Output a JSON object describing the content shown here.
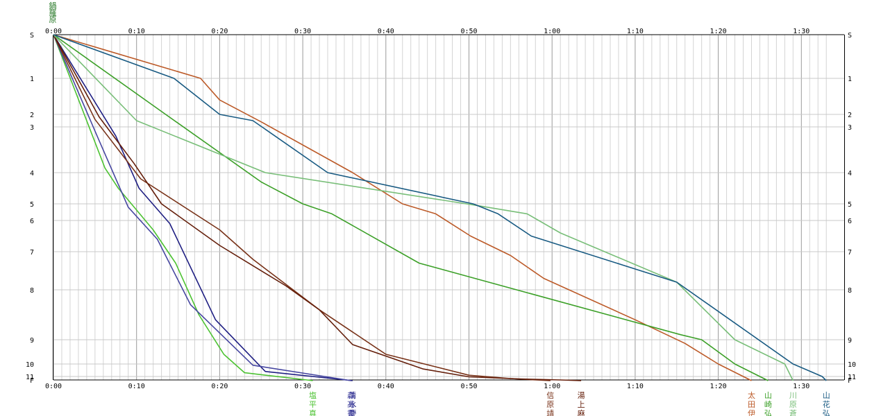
{
  "chart_data": {
    "type": "line",
    "xlim_minutes": [
      0,
      93
    ],
    "x_ticks": [
      {
        "t": 0,
        "label": "0:00"
      },
      {
        "t": 10,
        "label": "0:10"
      },
      {
        "t": 20,
        "label": "0:20"
      },
      {
        "t": 30,
        "label": "0:30"
      },
      {
        "t": 40,
        "label": "0:40"
      },
      {
        "t": 50,
        "label": "0:50"
      },
      {
        "t": 60,
        "label": "1:00"
      },
      {
        "t": 70,
        "label": "1:10"
      },
      {
        "t": 80,
        "label": "1:20"
      },
      {
        "t": 90,
        "label": "1:30"
      }
    ],
    "minor_grid_minutes": 1,
    "grid": true,
    "checkpoints": [
      "S",
      "1",
      "2",
      "3",
      "4",
      "5",
      "6",
      "7",
      "8",
      "9",
      "10",
      "11",
      "F"
    ],
    "checkpoint_order": [
      0,
      1,
      2,
      3,
      4,
      5,
      6,
      7,
      8,
      9,
      10,
      11,
      12
    ],
    "corner_label": "鍋羅原",
    "series": [
      {
        "name": "塩平真",
        "color": "#4cc232",
        "label_lines": [
          "塩",
          "平",
          "真"
        ],
        "x": [
          0,
          6.2,
          7.8,
          12,
          14.7,
          17.5,
          20.5,
          23,
          31.2
        ],
        "y": [
          0,
          3.9,
          4.5,
          6.3,
          7.3,
          8.5,
          9.6,
          10.7,
          12.2
        ]
      },
      {
        "name": "清水慶",
        "color": "#1e1e82",
        "label_lines": [
          "清",
          "水",
          "慶"
        ],
        "x": [
          0,
          7.5,
          10.3,
          14,
          19.5,
          25.5,
          36
        ],
        "y": [
          0,
          3.2,
          4.5,
          6.1,
          8.6,
          10.6,
          12.2
        ]
      },
      {
        "name": "森髙靈",
        "color": "#4646a0",
        "label_lines": [
          "森",
          "髙",
          "靈"
        ],
        "x": [
          0,
          5.5,
          9,
          12.5,
          16.5,
          24,
          35.8
        ],
        "y": [
          0,
          3.3,
          5.2,
          6.6,
          8.3,
          10.1,
          12.2
        ]
      },
      {
        "name": "信原靖",
        "color": "#783218",
        "label_lines": [
          "信",
          "原",
          "靖"
        ],
        "x": [
          0,
          5,
          10.5,
          20,
          24,
          32,
          40,
          50,
          55,
          59.8
        ],
        "y": [
          0,
          2.4,
          4.2,
          6.3,
          7.2,
          8.4,
          9.6,
          10.9,
          11.6,
          12.2
        ]
      },
      {
        "name": "湯上麻",
        "color": "#641e0a",
        "label_lines": [
          "湯",
          "上",
          "麻"
        ],
        "x": [
          0,
          5.5,
          9.7,
          13,
          20,
          28,
          32,
          36,
          44.5,
          50,
          56,
          61,
          63.5
        ],
        "y": [
          0,
          2.2,
          3.8,
          5.0,
          6.8,
          7.9,
          8.4,
          9.2,
          10.4,
          11.1,
          11.7,
          12.0,
          12.2
        ]
      },
      {
        "name": "太田伊",
        "color": "#bc5a28",
        "label_lines": [
          "太",
          "田",
          "伊"
        ],
        "x": [
          0,
          17.7,
          20,
          25,
          36,
          42,
          46,
          50.2,
          55,
          59,
          70,
          76,
          80,
          84
        ],
        "y": [
          0,
          1.0,
          1.6,
          2.6,
          4.0,
          5.0,
          5.6,
          6.5,
          7.1,
          7.7,
          8.6,
          9.15,
          10.0,
          12.2
        ]
      },
      {
        "name": "山崎弘",
        "color": "#3ca028",
        "label_lines": [
          "山",
          "崎",
          "弘"
        ],
        "x": [
          0,
          13.5,
          25,
          30,
          33.5,
          44,
          75.5,
          78,
          82,
          86
        ],
        "y": [
          0,
          2.0,
          4.3,
          5.0,
          5.6,
          7.3,
          8.9,
          9.0,
          10.0,
          12.2
        ]
      },
      {
        "name": "川原蒼",
        "color": "#78be78",
        "label_lines": [
          "川",
          "原",
          "蒼"
        ],
        "x": [
          0,
          10,
          25.5,
          51,
          57,
          61,
          75,
          82,
          88,
          89
        ],
        "y": [
          0,
          2.5,
          4.0,
          5.1,
          5.6,
          6.4,
          7.8,
          9.0,
          10.0,
          12.2
        ]
      },
      {
        "name": "山花弘",
        "color": "#185a82",
        "label_lines": [
          "山",
          "花",
          "弘"
        ],
        "x": [
          0,
          14.5,
          20,
          24,
          33,
          50.5,
          53.5,
          57.5,
          75,
          89,
          92.5,
          93
        ],
        "y": [
          0,
          1.0,
          2.0,
          2.5,
          4.0,
          5.0,
          5.6,
          6.5,
          7.8,
          10.0,
          11.0,
          12.2
        ]
      }
    ]
  }
}
